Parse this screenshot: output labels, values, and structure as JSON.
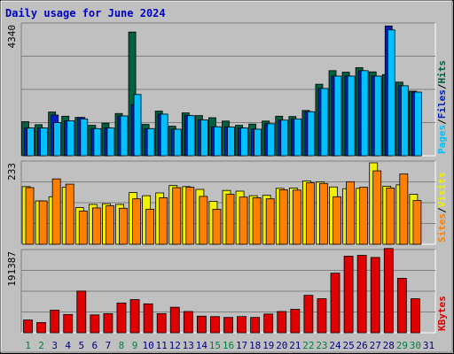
{
  "title": "Daily usage for June 2024",
  "colors": {
    "background": "#c0c0c0",
    "plot_background": "#c0c0c0",
    "title": "#0000c0",
    "hits": "#006040",
    "files": "#0020c0",
    "pages": "#00c0ff",
    "visits": "#f0f000",
    "sites": "#ff8000",
    "kbytes": "#e00000",
    "weekend_day": "#008040",
    "weekday": "#000080"
  },
  "chart_data": [
    {
      "type": "bar",
      "title": "Daily usage for June 2024",
      "categories": [
        "1",
        "2",
        "3",
        "4",
        "5",
        "6",
        "7",
        "8",
        "9",
        "10",
        "11",
        "12",
        "13",
        "14",
        "15",
        "16",
        "17",
        "18",
        "19",
        "20",
        "21",
        "22",
        "23",
        "24",
        "25",
        "26",
        "27",
        "28",
        "29",
        "30",
        "31"
      ],
      "weekend_days": [
        "1",
        "2",
        "8",
        "9",
        "15",
        "16",
        "22",
        "23",
        "29",
        "30"
      ],
      "max_label": "4340",
      "ymax": 4340,
      "right_labels": [
        "Pages",
        "/",
        "Files",
        "/",
        "Hits"
      ],
      "grid": true,
      "series": [
        {
          "name": "Hits",
          "values": [
            1130,
            1030,
            1450,
            1310,
            1270,
            1010,
            1080,
            1400,
            4100,
            1040,
            1480,
            980,
            1420,
            1330,
            1260,
            1150,
            1010,
            1050,
            1150,
            1310,
            1300,
            1500,
            2370,
            2820,
            2770,
            2920,
            2780,
            2690,
            2440,
            2140,
            null
          ]
        },
        {
          "name": "Files",
          "values": [
            920,
            920,
            1350,
            1160,
            1270,
            900,
            920,
            1320,
            1690,
            900,
            1380,
            880,
            1330,
            1190,
            960,
            950,
            920,
            880,
            1060,
            1180,
            1220,
            1460,
            2230,
            2640,
            2640,
            2820,
            2640,
            4300,
            2320,
            2110,
            null
          ]
        },
        {
          "name": "Pages",
          "values": [
            920,
            920,
            1100,
            1160,
            1220,
            900,
            920,
            1320,
            2030,
            900,
            1380,
            880,
            1330,
            1190,
            960,
            950,
            920,
            880,
            1060,
            1180,
            1220,
            1460,
            2230,
            2640,
            2640,
            2820,
            2640,
            4170,
            2320,
            2110,
            null
          ]
        }
      ]
    },
    {
      "type": "bar",
      "max_label": "233",
      "ymax": 233,
      "right_labels": [
        "Sites",
        "/",
        "Visits"
      ],
      "grid": true,
      "series": [
        {
          "name": "Visits",
          "values": [
            165,
            124,
            136,
            163,
            105,
            114,
            116,
            114,
            148,
            139,
            147,
            168,
            165,
            157,
            123,
            154,
            152,
            139,
            140,
            160,
            161,
            181,
            178,
            164,
            159,
            160,
            233,
            166,
            170,
            143,
            null
          ]
        },
        {
          "name": "Sites",
          "values": [
            162,
            124,
            187,
            172,
            95,
            104,
            110,
            103,
            130,
            100,
            133,
            162,
            163,
            137,
            100,
            143,
            135,
            133,
            130,
            156,
            155,
            176,
            174,
            136,
            179,
            163,
            210,
            161,
            201,
            125,
            null
          ]
        }
      ]
    },
    {
      "type": "bar",
      "max_label": "191387",
      "ymax": 191387,
      "right_labels": [
        "KBytes"
      ],
      "grid": true,
      "series": [
        {
          "name": "KBytes",
          "values": [
            30000,
            24000,
            53000,
            43000,
            98000,
            42000,
            45000,
            70000,
            78000,
            68000,
            45000,
            60000,
            50000,
            39000,
            38000,
            36000,
            38000,
            36000,
            44000,
            50000,
            55000,
            88000,
            80000,
            140000,
            180000,
            182000,
            177000,
            198000,
            128000,
            80000,
            null
          ]
        }
      ]
    }
  ]
}
